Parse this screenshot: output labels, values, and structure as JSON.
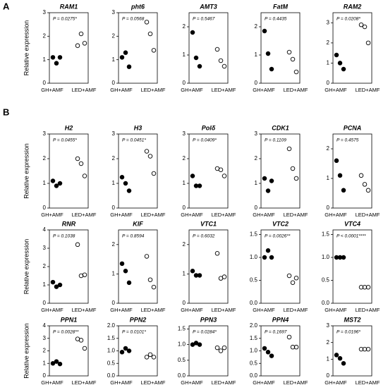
{
  "panel_labels": [
    "A",
    "B"
  ],
  "chart_data": [
    {
      "type": "dot",
      "title": "RAM1",
      "annotation": "P = 0.0275*",
      "ylabel": "Relative expression",
      "categories": [
        "GH+AMF",
        "LED+AMF"
      ],
      "values": [
        [
          1.1,
          0.85,
          1.1
        ],
        [
          1.6,
          2.1,
          1.7
        ]
      ],
      "marker_fill": [
        "#000000",
        "none"
      ],
      "ylim": [
        0,
        3
      ],
      "yticks": [
        0,
        1,
        2,
        3
      ]
    },
    {
      "type": "dot",
      "title": "pht6",
      "annotation": "P = 0.0568",
      "categories": [
        "GH+AMF",
        "LED+AMF"
      ],
      "values": [
        [
          1.1,
          1.3,
          0.7
        ],
        [
          2.6,
          2.1,
          1.4
        ]
      ],
      "marker_fill": [
        "#000000",
        "none"
      ],
      "ylim": [
        0,
        3
      ],
      "yticks": [
        0,
        1,
        2,
        3
      ]
    },
    {
      "type": "dot",
      "title": "AMT3",
      "annotation": "P = 0.5467",
      "categories": [
        "GH+AMF",
        "LED+AMF"
      ],
      "values": [
        [
          1.8,
          0.9,
          0.6
        ],
        [
          1.2,
          0.8,
          0.6
        ]
      ],
      "marker_fill": [
        "#000000",
        "none"
      ],
      "ylim": [
        0,
        2.5
      ],
      "yticks": [
        0,
        1,
        2
      ]
    },
    {
      "type": "dot",
      "title": "FatM",
      "annotation": "P = 0.4435",
      "categories": [
        "GH+AMF",
        "LED+AMF"
      ],
      "values": [
        [
          1.85,
          1.05,
          0.5
        ],
        [
          1.1,
          0.85,
          0.4
        ]
      ],
      "marker_fill": [
        "#000000",
        "none"
      ],
      "ylim": [
        0,
        2.5
      ],
      "yticks": [
        0,
        1,
        2
      ]
    },
    {
      "type": "dot",
      "title": "RAM2",
      "annotation": "P = 0.0208*",
      "categories": [
        "GH+AMF",
        "LED+AMF"
      ],
      "values": [
        [
          1.4,
          1.0,
          0.7
        ],
        [
          2.9,
          2.8,
          2.0
        ]
      ],
      "marker_fill": [
        "#000000",
        "none"
      ],
      "ylim": [
        0,
        3.5
      ],
      "yticks": [
        0,
        1,
        2,
        3
      ]
    },
    {
      "type": "dot",
      "title": "H2",
      "annotation": "P = 0.0455*",
      "ylabel": "Relative expression",
      "categories": [
        "GH+AMF",
        "LED+AMF"
      ],
      "values": [
        [
          1.1,
          0.9,
          1.0
        ],
        [
          2.0,
          1.8,
          1.3
        ]
      ],
      "marker_fill": [
        "#000000",
        "none"
      ],
      "ylim": [
        0,
        3
      ],
      "yticks": [
        0,
        1,
        2,
        3
      ]
    },
    {
      "type": "dot",
      "title": "H3",
      "annotation": "P = 0.0451*",
      "categories": [
        "GH+AMF",
        "LED+AMF"
      ],
      "values": [
        [
          1.25,
          1.0,
          0.7
        ],
        [
          2.3,
          2.1,
          1.4
        ]
      ],
      "marker_fill": [
        "#000000",
        "none"
      ],
      "ylim": [
        0,
        3
      ],
      "yticks": [
        0,
        1,
        2,
        3
      ]
    },
    {
      "type": "dot",
      "title": "Polδ",
      "annotation": "P = 0.0409*",
      "categories": [
        "GH+AMF",
        "LED+AMF"
      ],
      "values": [
        [
          1.3,
          0.9,
          0.9
        ],
        [
          1.6,
          1.55,
          1.3
        ]
      ],
      "marker_fill": [
        "#000000",
        "none"
      ],
      "ylim": [
        0,
        3
      ],
      "yticks": [
        0,
        1,
        2,
        3
      ]
    },
    {
      "type": "dot",
      "title": "CDK1",
      "annotation": "P = 0.1109",
      "categories": [
        "GH+AMF",
        "LED+AMF"
      ],
      "values": [
        [
          1.2,
          0.7,
          1.1
        ],
        [
          2.4,
          1.6,
          1.2
        ]
      ],
      "marker_fill": [
        "#000000",
        "none"
      ],
      "ylim": [
        0,
        3
      ],
      "yticks": [
        0,
        1,
        2,
        3
      ]
    },
    {
      "type": "dot",
      "title": "PCNA",
      "annotation": "P = 0.4575",
      "categories": [
        "GH+AMF",
        "LED+AMF"
      ],
      "values": [
        [
          1.6,
          1.1,
          0.6
        ],
        [
          1.1,
          0.8,
          0.6
        ]
      ],
      "marker_fill": [
        "#000000",
        "none"
      ],
      "ylim": [
        0,
        2.5
      ],
      "yticks": [
        0,
        1,
        2
      ]
    },
    {
      "type": "dot",
      "title": "RNR",
      "annotation": "P = 0.1038",
      "ylabel": "Relative expression",
      "categories": [
        "GH+AMF",
        "LED+AMF"
      ],
      "values": [
        [
          1.15,
          0.9,
          1.0
        ],
        [
          3.2,
          1.5,
          1.55
        ]
      ],
      "marker_fill": [
        "#000000",
        "none"
      ],
      "ylim": [
        0,
        4
      ],
      "yticks": [
        0,
        1,
        2,
        3,
        4
      ]
    },
    {
      "type": "dot",
      "title": "KIF",
      "annotation": "P = 0.8594",
      "categories": [
        "GH+AMF",
        "LED+AMF"
      ],
      "values": [
        [
          1.35,
          1.1,
          0.7
        ],
        [
          1.6,
          0.8,
          0.55
        ]
      ],
      "marker_fill": [
        "#000000",
        "none"
      ],
      "ylim": [
        0,
        2.5
      ],
      "yticks": [
        0,
        1,
        2
      ]
    },
    {
      "type": "dot",
      "title": "VTC1",
      "annotation": "P = 0.6032",
      "categories": [
        "GH+AMF",
        "LED+AMF"
      ],
      "values": [
        [
          1.1,
          0.95,
          0.95
        ],
        [
          1.7,
          0.85,
          0.9
        ]
      ],
      "marker_fill": [
        "#000000",
        "none"
      ],
      "ylim": [
        0,
        2.5
      ],
      "yticks": [
        0,
        1,
        2
      ]
    },
    {
      "type": "dot",
      "title": "VTC2",
      "annotation": "P = 0.0026**",
      "categories": [
        "GH+AMF",
        "LED+AMF"
      ],
      "values": [
        [
          1.0,
          1.15,
          1.0
        ],
        [
          0.6,
          0.45,
          0.55
        ]
      ],
      "marker_fill": [
        "#000000",
        "none"
      ],
      "ylim": [
        0,
        1.6
      ],
      "yticks": [
        {
          "value": 0,
          "label": "0.0"
        },
        0.5,
        {
          "value": 1,
          "label": "1.0"
        },
        1.5
      ]
    },
    {
      "type": "dot",
      "title": "VTC4",
      "annotation": "P < 0.0001****",
      "categories": [
        "GH+AMF",
        "LED+AMF"
      ],
      "values": [
        [
          1.0,
          1.0,
          1.0
        ],
        [
          0.35,
          0.35,
          0.35
        ]
      ],
      "marker_fill": [
        "#000000",
        "none"
      ],
      "ylim": [
        0,
        1.6
      ],
      "yticks": [
        {
          "value": 0,
          "label": "0.0"
        },
        0.5,
        {
          "value": 1,
          "label": "1.0"
        },
        1.5
      ]
    },
    {
      "type": "dot",
      "title": "PPN1",
      "annotation": "P = 0.0028**",
      "ylabel": "Relative expression",
      "categories": [
        "GH+AMF",
        "LED+AMF"
      ],
      "values": [
        [
          1.0,
          1.15,
          0.95
        ],
        [
          2.95,
          2.85,
          2.2
        ]
      ],
      "marker_fill": [
        "#000000",
        "none"
      ],
      "ylim": [
        0,
        4
      ],
      "yticks": [
        0,
        1,
        2,
        3,
        4
      ]
    },
    {
      "type": "dot",
      "title": "PPN2",
      "annotation": "P = 0.0101*",
      "categories": [
        "GH+AMF",
        "LED+AMF"
      ],
      "values": [
        [
          0.95,
          1.1,
          1.0
        ],
        [
          0.75,
          0.85,
          0.75
        ]
      ],
      "marker_fill": [
        "#000000",
        "none"
      ],
      "ylim": [
        0,
        2
      ],
      "yticks": [
        {
          "value": 0,
          "label": "0.0"
        },
        0.5,
        {
          "value": 1,
          "label": "1.0"
        },
        1.5,
        {
          "value": 2,
          "label": "2.0"
        }
      ]
    },
    {
      "type": "dot",
      "title": "PPN3",
      "annotation": "P = 0.0284*",
      "categories": [
        "GH+AMF",
        "LED+AMF"
      ],
      "values": [
        [
          1.0,
          1.05,
          1.0
        ],
        [
          0.9,
          0.8,
          0.9
        ]
      ],
      "marker_fill": [
        "#000000",
        "none"
      ],
      "ylim": [
        0,
        1.6
      ],
      "yticks": [
        {
          "value": 0,
          "label": "0.0"
        },
        0.5,
        {
          "value": 1,
          "label": "1.0"
        },
        1.5
      ]
    },
    {
      "type": "dot",
      "title": "PPN4",
      "annotation": "P = 0.1697",
      "categories": [
        "GH+AMF",
        "LED+AMF"
      ],
      "values": [
        [
          1.1,
          0.95,
          0.8
        ],
        [
          1.55,
          1.15,
          1.15
        ]
      ],
      "marker_fill": [
        "#000000",
        "none"
      ],
      "ylim": [
        0,
        2
      ],
      "yticks": [
        {
          "value": 0,
          "label": "0.0"
        },
        0.5,
        {
          "value": 1,
          "label": "1.0"
        },
        1.5,
        {
          "value": 2,
          "label": "2.0"
        }
      ]
    },
    {
      "type": "dot",
      "title": "MST2",
      "annotation": "P = 0.0196*",
      "categories": [
        "GH+AMF",
        "LED+AMF"
      ],
      "values": [
        [
          1.25,
          1.05,
          0.75
        ],
        [
          1.6,
          1.6,
          1.6
        ]
      ],
      "marker_fill": [
        "#000000",
        "none"
      ],
      "ylim": [
        0,
        3
      ],
      "yticks": [
        0,
        1,
        2,
        3
      ]
    }
  ]
}
